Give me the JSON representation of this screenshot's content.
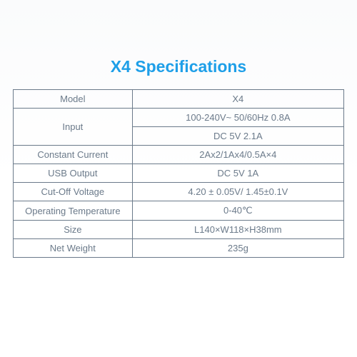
{
  "title": "X4 Specifications",
  "title_color": "#1e9fe8",
  "border_color": "#6b7a8a",
  "text_color": "#6b7a8a",
  "rows": [
    {
      "label": "Model",
      "value": "X4"
    },
    {
      "label": "Input",
      "value": "100-240V~ 50/60Hz 0.8A\nDC 5V 2.1A",
      "multiline": true
    },
    {
      "label": "Constant Current",
      "value": "2Ax2/1Ax4/0.5A×4"
    },
    {
      "label": "USB Output",
      "value": "DC 5V 1A"
    },
    {
      "label": "Cut-Off Voltage",
      "value": "4.20 ± 0.05V/ 1.45±0.1V"
    },
    {
      "label": "Operating Temperature",
      "value": "0-40℃"
    },
    {
      "label": "Size",
      "value": "L140×W118×H38mm"
    },
    {
      "label": "Net Weight",
      "value": "235g"
    }
  ]
}
